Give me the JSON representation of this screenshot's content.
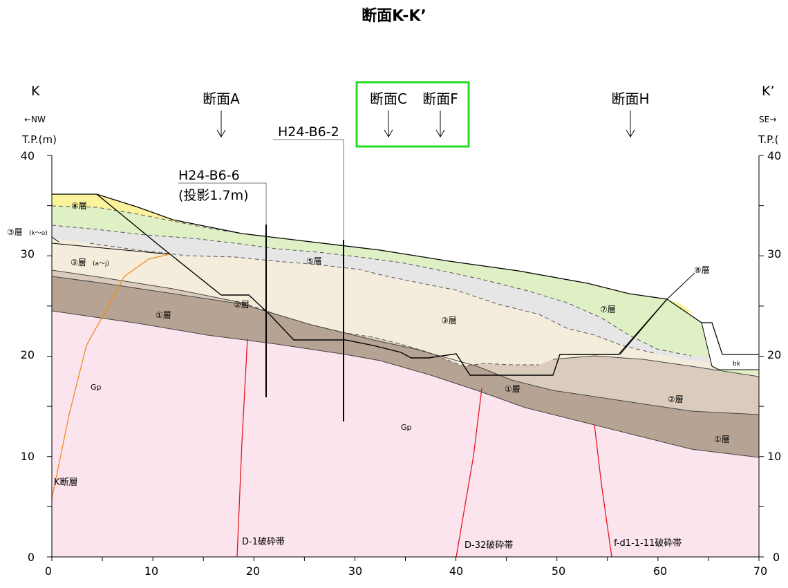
{
  "title": "断面K-K’",
  "ends": {
    "left_label": "K",
    "right_label": "K’",
    "left_direction": "←NW",
    "right_direction": "SE→",
    "left_axis_unit": "T.P.(m)",
    "right_axis_unit": "T.P.("
  },
  "axes": {
    "x_ticks": [
      "0",
      "10",
      "20",
      "30",
      "40",
      "50",
      "60",
      "70"
    ],
    "y_ticks_left": [
      "0",
      "10",
      "20",
      "30",
      "40"
    ],
    "y_ticks_right": [
      "0",
      "10",
      "20",
      "30",
      "40"
    ]
  },
  "cross_sections": [
    {
      "label": "断面A",
      "highlighted": false
    },
    {
      "label": "断面C",
      "highlighted": true
    },
    {
      "label": "断面F",
      "highlighted": true
    },
    {
      "label": "断面H",
      "highlighted": false
    }
  ],
  "boreholes": [
    {
      "name": "H24-B6-6",
      "note": "(投影1.7m)"
    },
    {
      "name": "H24-B6-2",
      "note": ""
    }
  ],
  "layers": {
    "layer8": "⑧層",
    "layer8_right": "⑧層",
    "layer3_ko": "③層",
    "layer3_ko_sub": "(k〜o)",
    "layer3_aj": "③層",
    "layer3_aj_sub": "(a〜j)",
    "layer5": "⑤層",
    "layer2": "②層",
    "layer1": "①層",
    "layer3": "③層",
    "layer7": "⑦層",
    "layer1_mid": "①層",
    "layer2_right": "②層",
    "layer1_right": "①層",
    "gp_left": "Gp",
    "gp_mid": "Gp",
    "bk": "bk"
  },
  "faults": [
    {
      "label": "K断層",
      "color": "#f28a1e"
    },
    {
      "label": "D-1破砕帯",
      "color": "#e8141c"
    },
    {
      "label": "D-32破砕帯",
      "color": "#e8141c"
    },
    {
      "label": "f-d1-1-11破砕帯",
      "color": "#e8141c"
    }
  ],
  "colors": {
    "gp_pink": "#fbe4ee",
    "layer1_brown": "#b7a393",
    "layer2_tan": "#dacbbd",
    "layer3_beige": "#f5eddc",
    "layer5_gray": "#e6e6e6",
    "layer7_green": "#def0c4",
    "layer8_yellow": "#fbf29c",
    "highlight_box": "#22dd22"
  }
}
